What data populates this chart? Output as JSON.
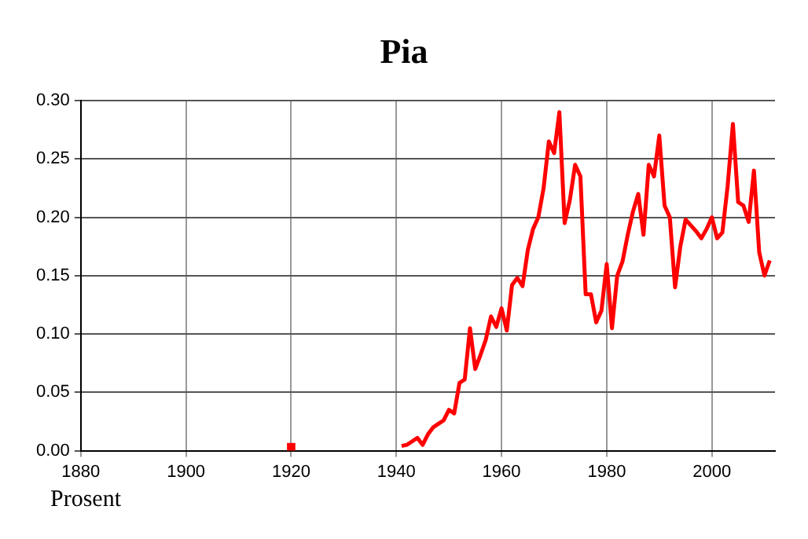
{
  "chart_data": {
    "type": "line",
    "title": "Pia",
    "ylabel": "Prosent",
    "xlim": [
      1880,
      2012
    ],
    "xticks": [
      1880,
      1900,
      1920,
      1940,
      1960,
      1980,
      2000
    ],
    "ylim": [
      0,
      0.3
    ],
    "yticks": [
      {
        "value": 0,
        "label": "0.00"
      },
      {
        "value": 0.05,
        "label": "0.05"
      },
      {
        "value": 0.1,
        "label": "0.10"
      },
      {
        "value": 0.15,
        "label": "0.15"
      },
      {
        "value": 0.2,
        "label": "0.20"
      },
      {
        "value": 0.25,
        "label": "0.25"
      },
      {
        "value": 0.3,
        "label": "0.30"
      }
    ],
    "grid": true,
    "legend": false,
    "marker": "none",
    "line_style": "solid",
    "series": [
      {
        "color": "#ff0000",
        "x": [
          1920,
          1921,
          1922,
          1923,
          1924,
          1925,
          1926,
          1927,
          1928,
          1929,
          1930,
          1931,
          1932,
          1933,
          1934,
          1935,
          1936,
          1937,
          1938,
          1939,
          1940,
          1941,
          1942,
          1943,
          1944,
          1945,
          1946,
          1947,
          1948,
          1949,
          1950,
          1951,
          1952,
          1953,
          1954,
          1955,
          1956,
          1957,
          1958,
          1959,
          1960,
          1961,
          1962,
          1963,
          1964,
          1965,
          1966,
          1967,
          1968,
          1969,
          1970,
          1971,
          1972,
          1973,
          1974,
          1975,
          1976,
          1977,
          1978,
          1979,
          1980,
          1981,
          1982,
          1983,
          1984,
          1985,
          1986,
          1987,
          1988,
          1989,
          1990,
          1991,
          1992,
          1993,
          1994,
          1995,
          1996,
          1997,
          1998,
          1999,
          2000,
          2001,
          2002,
          2003,
          2004,
          2005,
          2006,
          2007,
          2008,
          2009,
          2010,
          2011
        ],
        "values": [
          0.003,
          null,
          null,
          null,
          null,
          null,
          null,
          null,
          null,
          null,
          null,
          null,
          null,
          null,
          null,
          null,
          null,
          null,
          null,
          null,
          null,
          0.004,
          0.005,
          0.008,
          0.011,
          0.005,
          0.014,
          0.02,
          0.023,
          0.026,
          0.035,
          0.032,
          0.058,
          0.061,
          0.105,
          0.07,
          0.082,
          0.095,
          0.115,
          0.106,
          0.122,
          0.103,
          0.142,
          0.148,
          0.141,
          0.172,
          0.19,
          0.2,
          0.225,
          0.265,
          0.255,
          0.29,
          0.195,
          0.215,
          0.245,
          0.235,
          0.134,
          0.134,
          0.11,
          0.12,
          0.16,
          0.105,
          0.15,
          0.162,
          0.185,
          0.205,
          0.22,
          0.185,
          0.245,
          0.235,
          0.27,
          0.21,
          0.2,
          0.14,
          0.175,
          0.198,
          0.193,
          0.188,
          0.182,
          0.19,
          0.2,
          0.182,
          0.187,
          0.227,
          0.28,
          0.213,
          0.21,
          0.196,
          0.24,
          0.17,
          0.15,
          0.163
        ]
      }
    ]
  }
}
